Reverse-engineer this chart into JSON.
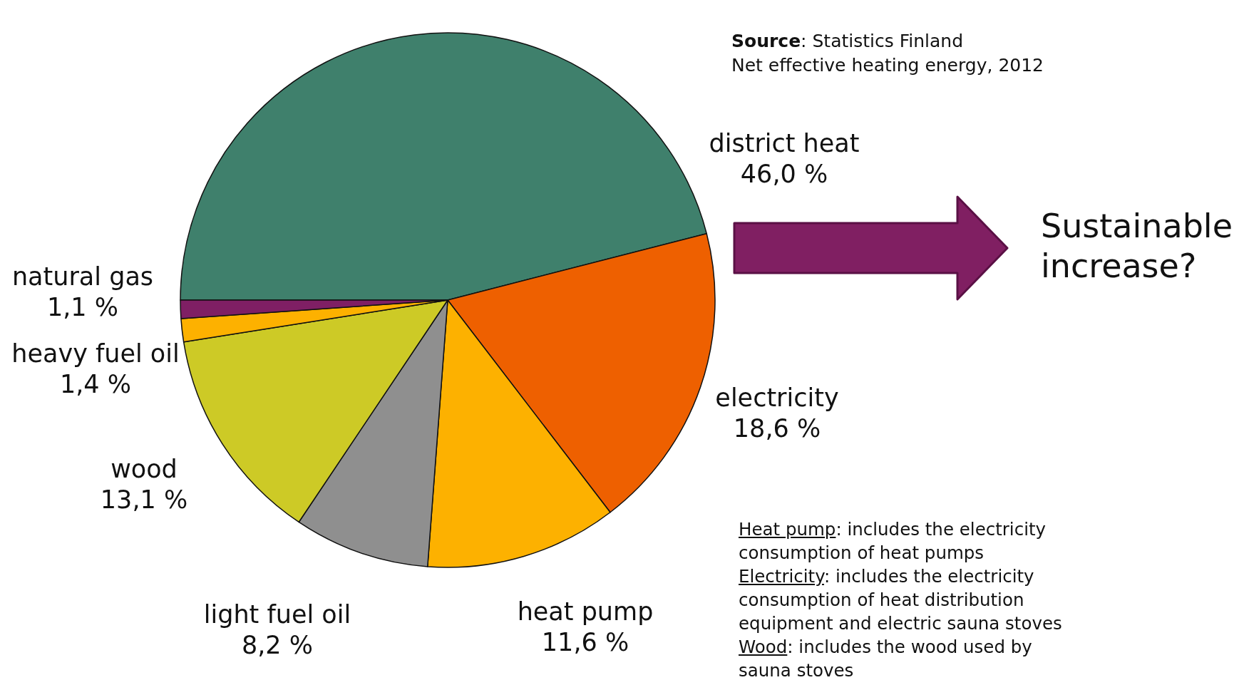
{
  "chart_data": {
    "type": "pie",
    "title": "Net effective heating energy, 2012",
    "categories": [
      "district heat",
      "electricity",
      "heat pump",
      "light fuel oil",
      "wood",
      "heavy fuel oil",
      "natural gas"
    ],
    "values": [
      46.0,
      18.6,
      11.6,
      8.2,
      13.1,
      1.4,
      1.1
    ],
    "value_labels": [
      "46,0 %",
      "18,6 %",
      "11,6 %",
      "8,2 %",
      "13,1 %",
      "1,4 %",
      "1,1 %"
    ],
    "colors": [
      "#3f806c",
      "#ee6000",
      "#fdb100",
      "#8f8f8f",
      "#cdca26",
      "#fdb100",
      "#7f1f64"
    ],
    "annotations": [
      "Source: Statistics Finland",
      "Sustainable increase?",
      "Heat pump: includes the electricity consumption of heat pumps",
      "Electricity: includes the electricity consumption of heat distribution equipment and electric sauna stoves",
      "Wood: includes the wood used by sauna stoves"
    ]
  }
}
